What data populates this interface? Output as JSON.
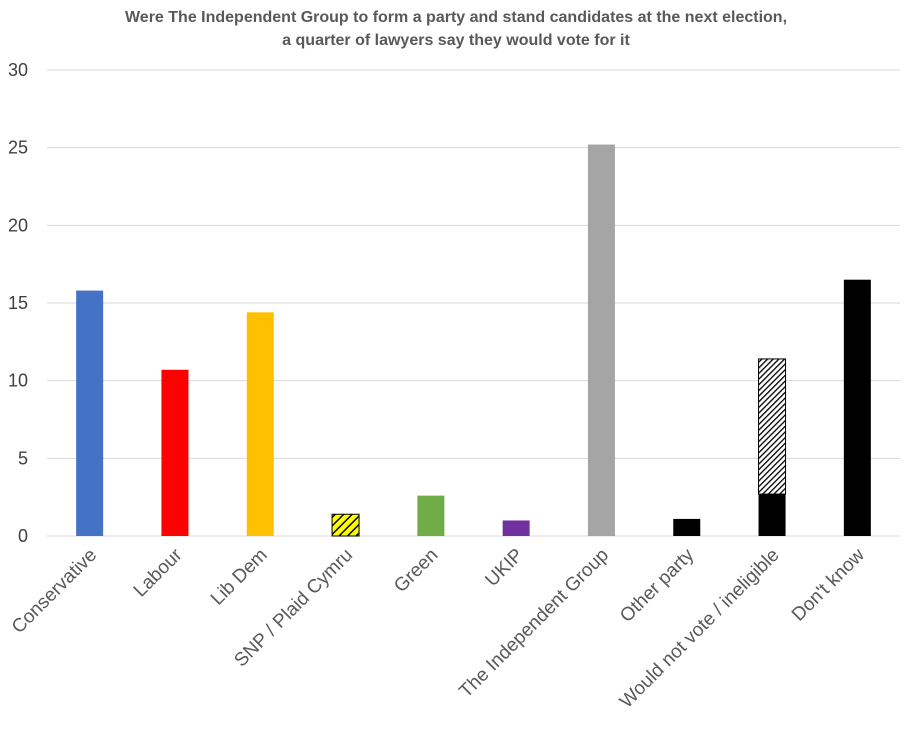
{
  "chart_data": {
    "type": "bar",
    "title_lines": [
      "Were The Independent Group to form a party and stand candidates at the next election,",
      "a quarter of lawyers say they would vote for it"
    ],
    "xlabel": "",
    "ylabel": "",
    "ylim": [
      0,
      30
    ],
    "yticks": [
      "0",
      "5",
      "10",
      "15",
      "20",
      "25",
      "30"
    ],
    "grid": true,
    "categories": [
      "Conservative",
      "Labour",
      "Lib Dem",
      "SNP / Plaid Cymru",
      "Green",
      "UKIP",
      "The Independent Group",
      "Other party",
      "Would not vote / ineligible",
      "Don't know"
    ],
    "values": [
      15.8,
      10.7,
      14.4,
      1.4,
      2.6,
      1.0,
      25.2,
      1.1,
      11.4,
      16.5
    ],
    "colors": [
      "#4472c4",
      "#ff0000",
      "#ffc000",
      "#ffff00",
      "#70ad47",
      "#7030a0",
      "#a5a5a5",
      "#000000",
      "#000000",
      "#000000"
    ],
    "patterns": [
      "solid",
      "solid",
      "solid",
      "hatch-yellow",
      "solid",
      "solid",
      "solid",
      "solid",
      "hatch-top",
      "solid"
    ],
    "stacked_segments": {
      "Would not vote / ineligible": {
        "solid_base": 2.7,
        "hatched_top": 8.7
      }
    }
  }
}
